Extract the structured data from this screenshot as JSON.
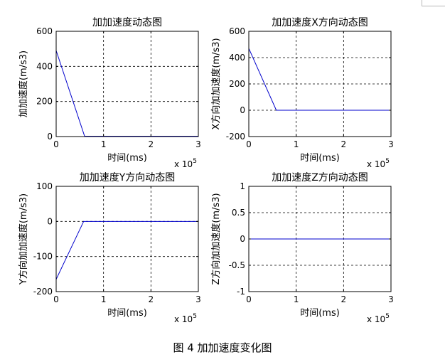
{
  "caption": "图 4  加加速度变化图",
  "chart_data": [
    {
      "type": "line",
      "title": "加加速度动态图",
      "xlabel": "时间(ms)",
      "ylabel": "加加速度(m/s3)",
      "x_multiplier_label": "x 10",
      "x_multiplier_exp": "5",
      "xlim": [
        0,
        3
      ],
      "ylim": [
        0,
        600
      ],
      "xticks": [
        "0",
        "1",
        "2",
        "3"
      ],
      "yticks": [
        "0",
        "200",
        "400",
        "600"
      ],
      "xtick_values": [
        0,
        1,
        2,
        3
      ],
      "ytick_values": [
        0,
        200,
        400,
        600
      ],
      "grid": true,
      "series": [
        {
          "x": [
            0,
            0.6,
            3
          ],
          "y": [
            490,
            2,
            2
          ]
        }
      ],
      "color": "#0000cc"
    },
    {
      "type": "line",
      "title": "加加速度X方向动态图",
      "xlabel": "时间(ms)",
      "ylabel": "X方向加加速度(m/s3)",
      "x_multiplier_label": "x 10",
      "x_multiplier_exp": "5",
      "xlim": [
        0,
        3
      ],
      "ylim": [
        -200,
        600
      ],
      "xticks": [
        "0",
        "1",
        "2",
        "3"
      ],
      "yticks": [
        "-200",
        "0",
        "200",
        "400",
        "600"
      ],
      "xtick_values": [
        0,
        1,
        2,
        3
      ],
      "ytick_values": [
        -200,
        0,
        200,
        400,
        600
      ],
      "grid": true,
      "series": [
        {
          "x": [
            0,
            0.58,
            3
          ],
          "y": [
            470,
            0,
            0
          ]
        }
      ],
      "color": "#0000cc"
    },
    {
      "type": "line",
      "title": "加加速度Y方向动态图",
      "xlabel": "时间(ms)",
      "ylabel": "Y方向加加速度(m/s3)",
      "x_multiplier_label": "x 10",
      "x_multiplier_exp": "5",
      "xlim": [
        0,
        3
      ],
      "ylim": [
        -200,
        100
      ],
      "xticks": [
        "0",
        "1",
        "2",
        "3"
      ],
      "yticks": [
        "-200",
        "-100",
        "0",
        "100"
      ],
      "xtick_values": [
        0,
        1,
        2,
        3
      ],
      "ytick_values": [
        -200,
        -100,
        0,
        100
      ],
      "grid": true,
      "series": [
        {
          "x": [
            0,
            0.58,
            3
          ],
          "y": [
            -165,
            0,
            0
          ]
        }
      ],
      "color": "#0000cc"
    },
    {
      "type": "line",
      "title": "加加速度Z方向动态图",
      "xlabel": "时间(ms)",
      "ylabel": "Z方向加加速度(m/s3)",
      "x_multiplier_label": "x 10",
      "x_multiplier_exp": "5",
      "xlim": [
        0,
        3
      ],
      "ylim": [
        -1,
        1
      ],
      "xticks": [
        "0",
        "1",
        "2",
        "3"
      ],
      "yticks": [
        "-1",
        "-0.5",
        "0",
        "0.5",
        "1"
      ],
      "xtick_values": [
        0,
        1,
        2,
        3
      ],
      "ytick_values": [
        -1,
        -0.5,
        0,
        0.5,
        1
      ],
      "grid": true,
      "series": [
        {
          "x": [
            0,
            3
          ],
          "y": [
            0,
            0
          ]
        }
      ],
      "color": "#0000cc"
    }
  ]
}
